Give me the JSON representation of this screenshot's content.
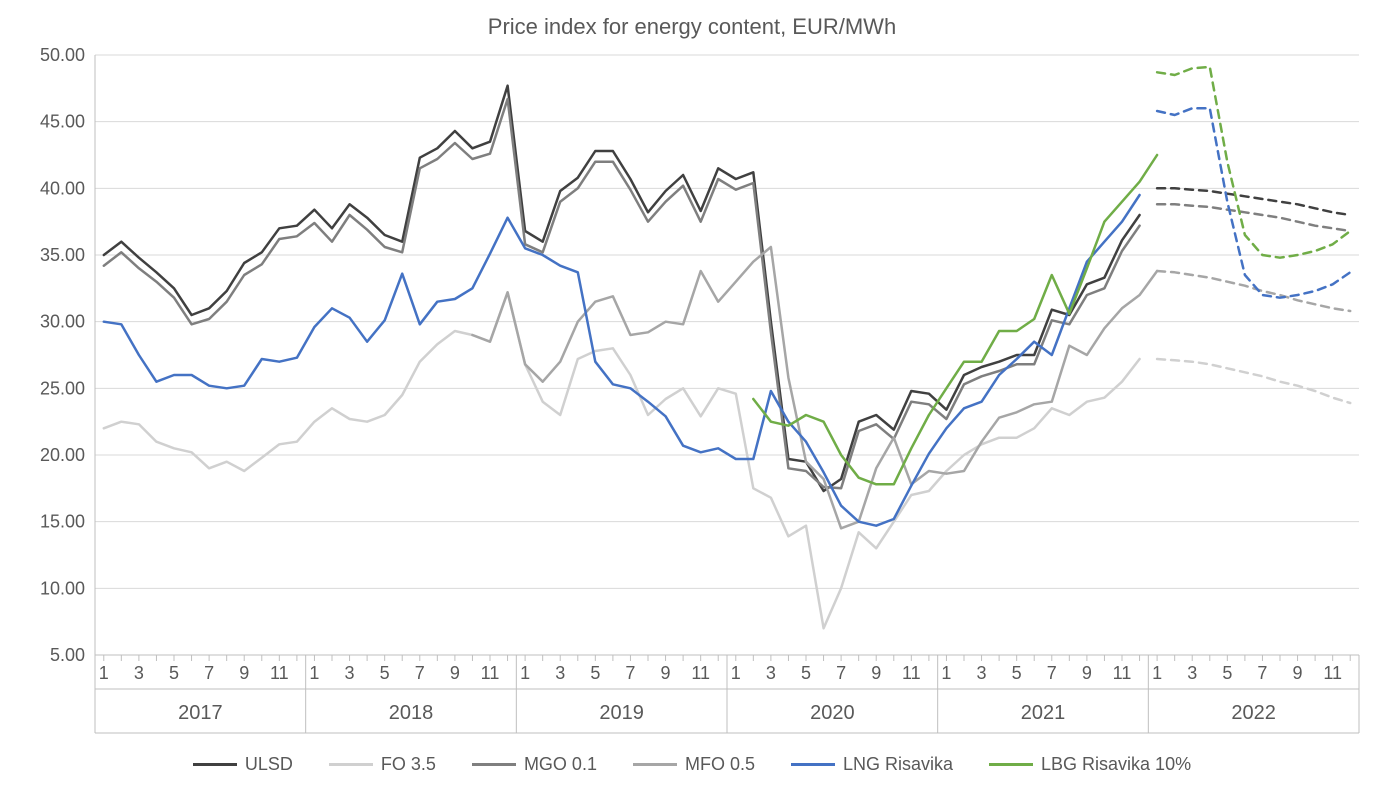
{
  "title": "Price index for energy content, EUR/MWh",
  "title_fontsize": 22,
  "font_family": "Arial",
  "text_color": "#595959",
  "background_color": "#ffffff",
  "y_axis": {
    "min": 5.0,
    "max": 50.0,
    "ticks": [
      5.0,
      10.0,
      15.0,
      20.0,
      25.0,
      30.0,
      35.0,
      40.0,
      45.0,
      50.0
    ],
    "tick_format_decimals": 2,
    "label_fontsize": 18,
    "grid_color": "#d9d9d9",
    "axis_line_color": "#bfbfbf"
  },
  "x_axis": {
    "years": [
      2017,
      2018,
      2019,
      2020,
      2021,
      2022
    ],
    "months_per_year": 12,
    "month_tick_labels": [
      1,
      3,
      5,
      7,
      9,
      11
    ],
    "label_fontsize": 18,
    "year_fontsize": 20,
    "axis_line_color": "#bfbfbf",
    "year_divider_color": "#bfbfbf"
  },
  "chart_style": {
    "line_width": 2.5,
    "dash_pattern": "8,6"
  },
  "legend": {
    "items": [
      {
        "label": "ULSD",
        "color": "#404040"
      },
      {
        "label": "FO 3.5",
        "color": "#d0d0d0"
      },
      {
        "label": "MGO 0.1",
        "color": "#7f7f7f"
      },
      {
        "label": "MFO 0.5",
        "color": "#a6a6a6"
      },
      {
        "label": "LNG Risavika",
        "color": "#4472c4"
      },
      {
        "label": "LBG Risavika 10%",
        "color": "#70ad47"
      }
    ],
    "fontsize": 18
  },
  "series": [
    {
      "name": "ULSD",
      "color": "#404040",
      "solid": {
        "start_index": 0,
        "values": [
          35.0,
          36.0,
          34.8,
          33.7,
          32.5,
          30.5,
          31.0,
          32.3,
          34.4,
          35.2,
          37.0,
          37.2,
          38.4,
          37.0,
          38.8,
          37.8,
          36.5,
          36.0,
          42.3,
          43.0,
          44.3,
          43.0,
          43.5,
          47.7,
          36.8,
          36.0,
          39.8,
          40.8,
          42.8,
          42.8,
          40.7,
          38.2,
          39.8,
          41.0,
          38.3,
          41.5,
          40.7,
          41.2,
          30.0,
          19.7,
          19.5,
          17.3,
          18.2,
          22.5,
          23.0,
          21.9,
          24.8,
          24.6,
          23.4,
          26.0,
          26.6,
          27.0,
          27.5,
          27.5,
          30.9,
          30.5,
          32.8,
          33.3,
          36.1,
          38.0
        ]
      },
      "dashed": {
        "start_index": 60,
        "values": [
          40.0,
          40.0,
          39.9,
          39.8,
          39.6,
          39.4,
          39.2,
          39.0,
          38.8,
          38.5,
          38.2,
          38.0
        ]
      }
    },
    {
      "name": "MGO 0.1",
      "color": "#7f7f7f",
      "solid": {
        "start_index": 0,
        "values": [
          34.2,
          35.2,
          34.0,
          33.0,
          31.8,
          29.8,
          30.2,
          31.5,
          33.5,
          34.3,
          36.2,
          36.4,
          37.4,
          36.0,
          38.0,
          36.9,
          35.6,
          35.2,
          41.5,
          42.2,
          43.4,
          42.2,
          42.6,
          46.7,
          35.8,
          35.2,
          39.0,
          40.0,
          42.0,
          42.0,
          39.9,
          37.5,
          39.0,
          40.2,
          37.5,
          40.7,
          39.9,
          40.4,
          29.2,
          19.0,
          18.8,
          17.6,
          17.5,
          21.8,
          22.3,
          21.2,
          24.0,
          23.8,
          22.7,
          25.3,
          25.9,
          26.3,
          26.8,
          26.8,
          30.1,
          29.8,
          32.0,
          32.5,
          35.3,
          37.2
        ]
      },
      "dashed": {
        "start_index": 60,
        "values": [
          38.8,
          38.8,
          38.7,
          38.6,
          38.4,
          38.2,
          38.0,
          37.8,
          37.5,
          37.2,
          37.0,
          36.8
        ]
      }
    },
    {
      "name": "FO 3.5",
      "color": "#d0d0d0",
      "solid": {
        "start_index": 0,
        "values": [
          22.0,
          22.5,
          22.3,
          21.0,
          20.5,
          20.2,
          19.0,
          19.5,
          18.8,
          19.8,
          20.8,
          21.0,
          22.5,
          23.5,
          22.7,
          22.5,
          23.0,
          24.5,
          27.0,
          28.3,
          29.3,
          29.0,
          28.5,
          32.2,
          26.8,
          24.0,
          23.0,
          27.2,
          27.8,
          28.0,
          26.0,
          23.0,
          24.2,
          25.0,
          22.9,
          25.0,
          24.6,
          17.5,
          16.8,
          13.9,
          14.7,
          7.0,
          10.0,
          14.2,
          13.0,
          15.0,
          17.0,
          17.3,
          18.8,
          20.0,
          20.8,
          21.3,
          21.3,
          22.0,
          23.5,
          23.0,
          24.0,
          24.3,
          25.5,
          27.2
        ]
      },
      "dashed": {
        "start_index": 60,
        "values": [
          27.2,
          27.1,
          27.0,
          26.8,
          26.5,
          26.2,
          25.9,
          25.5,
          25.2,
          24.8,
          24.3,
          23.9
        ]
      }
    },
    {
      "name": "MFO 0.5",
      "color": "#a6a6a6",
      "solid": {
        "start_index": 21,
        "values": [
          29.0,
          28.5,
          32.2,
          26.8,
          25.5,
          27.0,
          30.0,
          31.5,
          31.9,
          29.0,
          29.2,
          30.0,
          29.8,
          33.8,
          31.5,
          33.0,
          34.5,
          35.6,
          25.8,
          19.5,
          18.2,
          14.5,
          15.0,
          19.0,
          21.3,
          17.8,
          18.8,
          18.6,
          18.8,
          21.0,
          22.8,
          23.2,
          23.8,
          24.0,
          28.2,
          27.5,
          29.5,
          31.0,
          32.0,
          33.8
        ]
      },
      "dashed": {
        "start_index": 60,
        "values": [
          33.8,
          33.7,
          33.5,
          33.3,
          33.0,
          32.7,
          32.3,
          32.0,
          31.6,
          31.3,
          31.0,
          30.8
        ]
      }
    },
    {
      "name": "LNG Risavika",
      "color": "#4472c4",
      "solid": {
        "start_index": 0,
        "values": [
          30.0,
          29.8,
          27.5,
          25.5,
          26.0,
          26.0,
          25.2,
          25.0,
          25.2,
          27.2,
          27.0,
          27.3,
          29.6,
          31.0,
          30.3,
          28.5,
          30.1,
          33.6,
          29.8,
          31.5,
          31.7,
          32.5,
          35.1,
          37.8,
          35.5,
          35.0,
          34.2,
          33.7,
          27.0,
          25.3,
          25.0,
          24.0,
          22.9,
          20.7,
          20.2,
          20.5,
          19.7,
          19.7,
          24.8,
          22.5,
          21.0,
          18.7,
          16.2,
          15.0,
          14.7,
          15.2,
          17.7,
          20.1,
          22.0,
          23.5,
          24.0,
          26.0,
          27.2,
          28.5,
          27.5,
          31.0,
          34.5,
          36.0,
          37.5,
          39.5
        ]
      },
      "dashed": {
        "start_index": 60,
        "values": [
          45.8,
          45.5,
          46.0,
          46.0,
          39.0,
          33.5,
          32.0,
          31.8,
          32.0,
          32.3,
          32.8,
          33.7
        ]
      }
    },
    {
      "name": "LBG Risavika 10%",
      "color": "#70ad47",
      "solid": {
        "start_index": 37,
        "values": [
          24.2,
          22.5,
          22.2,
          23.0,
          22.5,
          20.0,
          18.3,
          17.8,
          17.8,
          20.5,
          23.0,
          25.0,
          27.0,
          27.0,
          29.3,
          29.3,
          30.2,
          33.5,
          30.6,
          34.0,
          37.5,
          39.0,
          40.5,
          42.5
        ]
      },
      "dashed": {
        "start_index": 60,
        "values": [
          48.7,
          48.5,
          49.0,
          49.1,
          42.0,
          36.5,
          35.0,
          34.8,
          35.0,
          35.3,
          35.8,
          36.8
        ]
      }
    }
  ]
}
